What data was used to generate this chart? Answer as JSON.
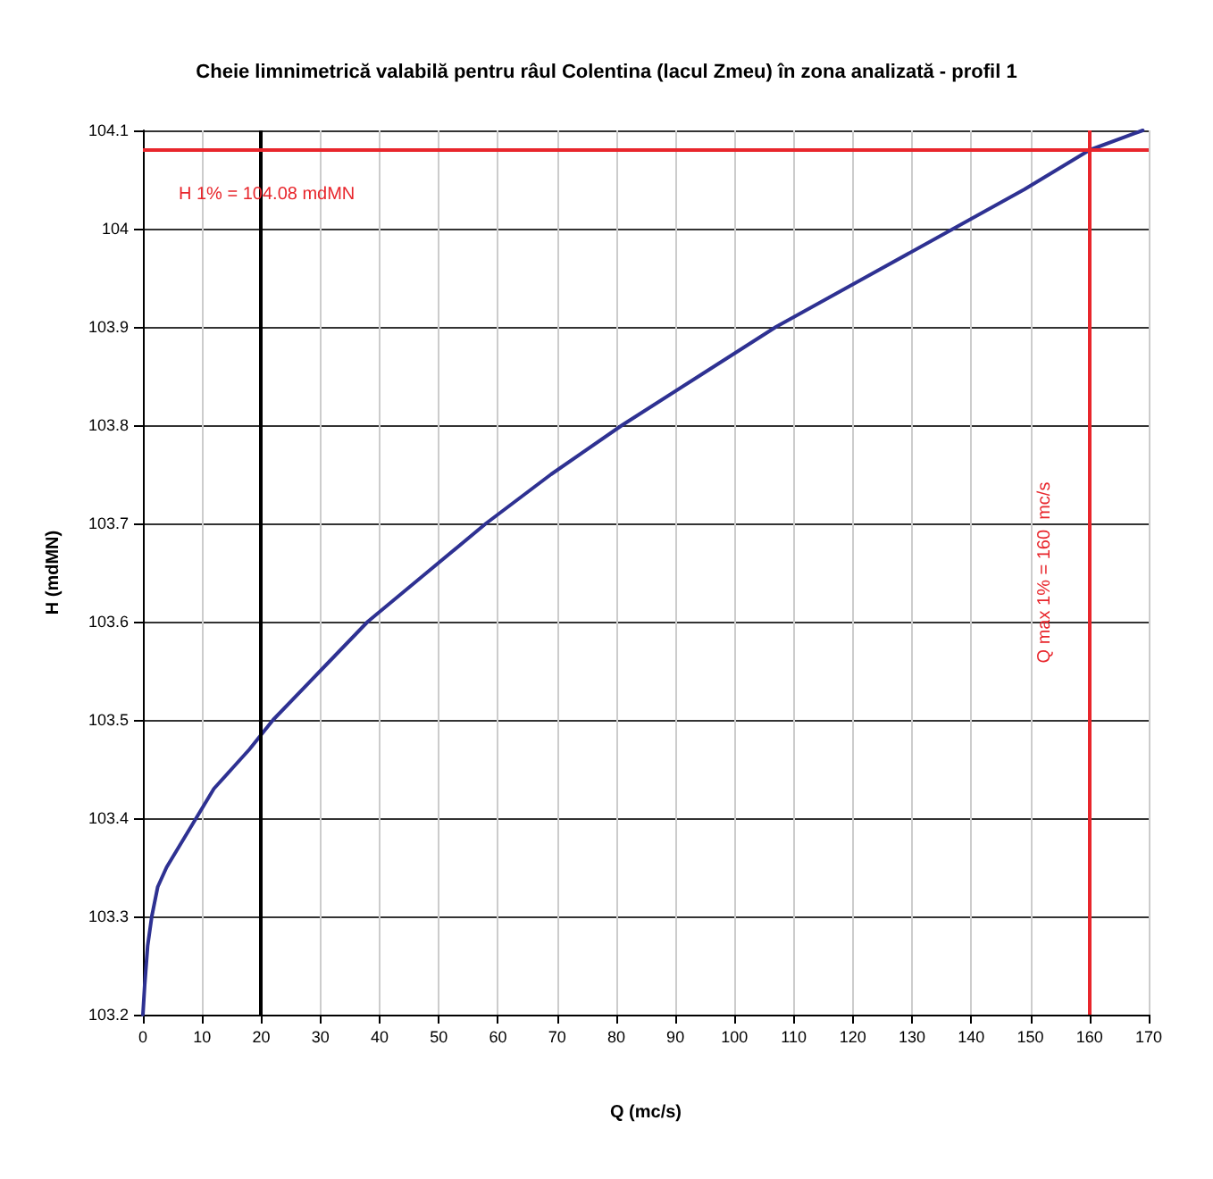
{
  "chart_data": {
    "type": "line",
    "title": "Cheie limnimetrică valabilă pentru râul Colentina (lacul Zmeu) în zona analizată - profil 1",
    "xlabel": "Q (mc/s)",
    "ylabel": "H (mdMN)",
    "series": [
      {
        "color": "#2e3192",
        "x": [
          0,
          0.3,
          0.8,
          1.5,
          2.5,
          4,
          6,
          9,
          12,
          15,
          18,
          22,
          30,
          38,
          48,
          58,
          69,
          81,
          94,
          107,
          122,
          137,
          149,
          160,
          169
        ],
        "values": [
          103.2,
          103.23,
          103.27,
          103.3,
          103.33,
          103.35,
          103.37,
          103.4,
          103.43,
          103.45,
          103.47,
          103.5,
          103.55,
          103.6,
          103.65,
          103.7,
          103.75,
          103.8,
          103.85,
          103.9,
          103.95,
          104.0,
          104.04,
          104.08,
          104.1
        ]
      }
    ],
    "xlim": [
      0,
      170
    ],
    "xticks": [
      0,
      10,
      20,
      30,
      40,
      50,
      60,
      70,
      80,
      90,
      100,
      110,
      120,
      130,
      140,
      150,
      160,
      170
    ],
    "ylim": [
      103.2,
      104.1
    ],
    "yticks": [
      103.2,
      103.3,
      103.4,
      103.5,
      103.6,
      103.7,
      103.8,
      103.9,
      104,
      104.1
    ],
    "grid": true,
    "marker": "none",
    "line_style": "solid",
    "ref_lines": [
      {
        "axis": "y",
        "value": 104.08,
        "label": "H 1% = 104.08 mdMN",
        "color": "#e8262c"
      },
      {
        "axis": "x",
        "value": 160,
        "label": "Q max 1% = 160  mc/s",
        "color": "#e8262c"
      },
      {
        "axis": "x",
        "value": 20,
        "color": "#000000"
      }
    ]
  }
}
